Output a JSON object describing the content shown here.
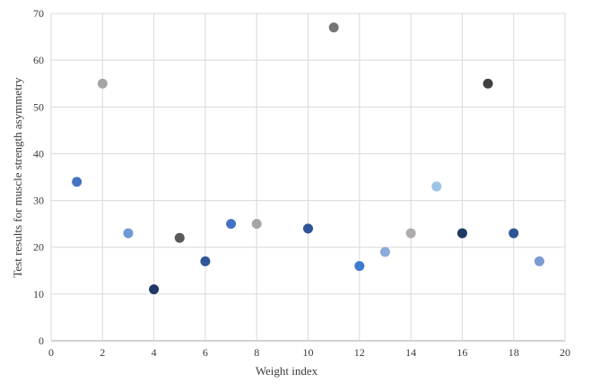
{
  "chart_data": {
    "type": "scatter",
    "title": "",
    "xlabel": "Weight index",
    "ylabel": "Test results for muscle strength asymmetry",
    "xlim": [
      0,
      20
    ],
    "ylim": [
      0,
      70
    ],
    "x_ticks": [
      0,
      2,
      4,
      6,
      8,
      10,
      12,
      14,
      16,
      18,
      20
    ],
    "y_ticks": [
      0,
      10,
      20,
      30,
      40,
      50,
      60,
      70
    ],
    "grid": true,
    "legend": "none",
    "gridline_color": "#d9d9d9",
    "axis_line_color": "#a6a6a6",
    "tick_label_color": "#3b3b3b",
    "points": [
      {
        "x": 1,
        "y": 34,
        "color": "#4472c4"
      },
      {
        "x": 2,
        "y": 55,
        "color": "#a5a5a5"
      },
      {
        "x": 3,
        "y": 23,
        "color": "#6e9bd8"
      },
      {
        "x": 4,
        "y": 11,
        "color": "#1f3864"
      },
      {
        "x": 5,
        "y": 22,
        "color": "#595959"
      },
      {
        "x": 6,
        "y": 17,
        "color": "#2e5597"
      },
      {
        "x": 7,
        "y": 25,
        "color": "#4472c4"
      },
      {
        "x": 8,
        "y": 25,
        "color": "#a5a5a5"
      },
      {
        "x": 10,
        "y": 24,
        "color": "#2e5597"
      },
      {
        "x": 11,
        "y": 67,
        "color": "#757575"
      },
      {
        "x": 12,
        "y": 16,
        "color": "#3e7bd0"
      },
      {
        "x": 13,
        "y": 19,
        "color": "#8ea9db"
      },
      {
        "x": 14,
        "y": 23,
        "color": "#afabab"
      },
      {
        "x": 15,
        "y": 33,
        "color": "#9dc3e6"
      },
      {
        "x": 16,
        "y": 23,
        "color": "#203864"
      },
      {
        "x": 17,
        "y": 55,
        "color": "#404040"
      },
      {
        "x": 18,
        "y": 23,
        "color": "#2e5597"
      },
      {
        "x": 19,
        "y": 17,
        "color": "#7b9bd2"
      }
    ]
  }
}
